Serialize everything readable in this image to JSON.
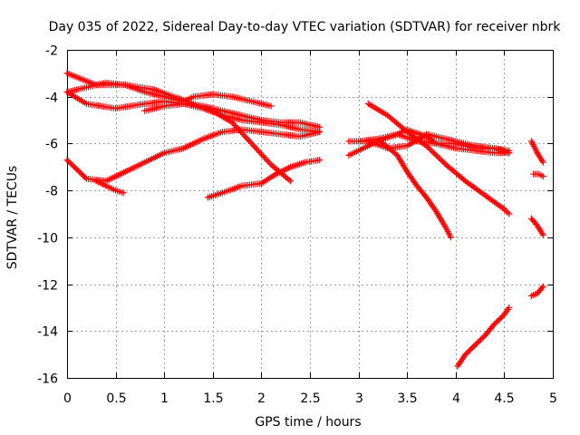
{
  "chart_data": {
    "type": "scatter",
    "title": "Day 035 of 2022, Sidereal Day-to-day VTEC variation (SDTVAR) for receiver nbrk",
    "xlabel": "GPS time / hours",
    "ylabel": "SDTVAR / TECUs",
    "xlim": [
      0,
      5
    ],
    "ylim": [
      -16,
      -2
    ],
    "xticks": [
      0,
      0.5,
      1,
      1.5,
      2,
      2.5,
      3,
      3.5,
      4,
      4.5,
      5
    ],
    "yticks": [
      -16,
      -14,
      -12,
      -10,
      -8,
      -6,
      -4,
      -2
    ],
    "xtick_labels": [
      "0",
      "0.5",
      "1",
      "1.5",
      "2",
      "2.5",
      "3",
      "3.5",
      "4",
      "4.5",
      "5"
    ],
    "ytick_labels": [
      "-16",
      "-14",
      "-12",
      "-10",
      "-8",
      "-6",
      "-4",
      "-2"
    ],
    "grid": true,
    "marker": "+",
    "color": "#ff0000",
    "series": [
      {
        "name": "track-1",
        "x": [
          0.0,
          0.3,
          0.6,
          0.9,
          1.1,
          1.3,
          1.5,
          1.7,
          1.9,
          2.1,
          2.3
        ],
        "y": [
          -3.0,
          -3.5,
          -3.5,
          -3.7,
          -4.0,
          -4.3,
          -4.6,
          -5.1,
          -6.0,
          -6.9,
          -7.6
        ]
      },
      {
        "name": "track-2",
        "x": [
          0.0,
          0.2,
          0.4,
          0.6,
          0.8,
          1.0,
          1.2,
          1.3,
          1.5,
          1.7,
          1.9,
          2.1
        ],
        "y": [
          -3.8,
          -3.6,
          -3.4,
          -3.5,
          -3.8,
          -4.0,
          -4.2,
          -4.0,
          -3.9,
          -4.0,
          -4.2,
          -4.4
        ]
      },
      {
        "name": "track-3",
        "x": [
          0.0,
          0.2,
          0.5,
          0.8,
          1.0,
          1.2,
          1.4,
          1.6,
          1.8,
          2.0,
          2.2,
          2.4,
          2.6
        ],
        "y": [
          -3.8,
          -4.3,
          -4.5,
          -4.3,
          -4.2,
          -4.3,
          -4.5,
          -4.8,
          -5.0,
          -5.1,
          -5.2,
          -5.4,
          -5.5
        ]
      },
      {
        "name": "track-4",
        "x": [
          0.8,
          1.0,
          1.2,
          1.4,
          1.6,
          1.8,
          2.0,
          2.2,
          2.4,
          2.6
        ],
        "y": [
          -4.6,
          -4.4,
          -4.3,
          -4.4,
          -4.6,
          -4.8,
          -5.0,
          -5.1,
          -5.1,
          -5.3
        ]
      },
      {
        "name": "track-5",
        "x": [
          0.0,
          0.2,
          0.4,
          0.6,
          0.8,
          1.0,
          1.2,
          1.4,
          1.6,
          1.8,
          2.0,
          2.2,
          2.4,
          2.6
        ],
        "y": [
          -6.7,
          -7.5,
          -7.6,
          -7.2,
          -6.8,
          -6.4,
          -6.2,
          -5.8,
          -5.5,
          -5.4,
          -5.5,
          -5.6,
          -5.7,
          -5.5
        ]
      },
      {
        "name": "track-6",
        "x": [
          0.3,
          0.4,
          0.5,
          0.58
        ],
        "y": [
          -7.6,
          -7.8,
          -8.0,
          -8.1
        ]
      },
      {
        "name": "track-7",
        "x": [
          1.45,
          1.6,
          1.8,
          2.0,
          2.15,
          2.3,
          2.45,
          2.6
        ],
        "y": [
          -8.3,
          -8.1,
          -7.8,
          -7.7,
          -7.3,
          -7.0,
          -6.8,
          -6.7
        ]
      },
      {
        "name": "track-8",
        "x": [
          2.9,
          3.0,
          3.2,
          3.4,
          3.5,
          3.7,
          3.8,
          4.0,
          4.2,
          4.4,
          4.55
        ],
        "y": [
          -6.5,
          -6.3,
          -5.9,
          -5.6,
          -5.4,
          -5.7,
          -6.0,
          -6.2,
          -6.3,
          -6.4,
          -6.4
        ]
      },
      {
        "name": "track-9",
        "x": [
          2.9,
          3.1,
          3.3,
          3.5,
          3.7,
          3.8,
          4.0,
          4.2,
          4.4,
          4.55
        ],
        "y": [
          -5.9,
          -5.9,
          -6.2,
          -6.1,
          -5.6,
          -5.7,
          -5.9,
          -6.1,
          -6.2,
          -6.3
        ]
      },
      {
        "name": "track-10",
        "x": [
          3.0,
          3.2,
          3.4,
          3.6,
          3.8,
          4.0,
          4.2,
          4.4,
          4.55
        ],
        "y": [
          -5.9,
          -5.8,
          -5.6,
          -5.9,
          -6.0,
          -6.0,
          -6.2,
          -6.2,
          -6.4
        ]
      },
      {
        "name": "track-11",
        "x": [
          3.1,
          3.3,
          3.5,
          3.7,
          3.9,
          4.1,
          4.3,
          4.5,
          4.55
        ],
        "y": [
          -4.3,
          -4.8,
          -5.5,
          -6.1,
          -6.9,
          -7.6,
          -8.2,
          -8.8,
          -9.0
        ]
      },
      {
        "name": "track-12",
        "x": [
          3.2,
          3.4,
          3.5,
          3.6,
          3.7,
          3.8,
          3.9,
          3.95
        ],
        "y": [
          -5.8,
          -6.5,
          -7.2,
          -7.8,
          -8.3,
          -8.9,
          -9.6,
          -10.0
        ]
      },
      {
        "name": "track-13",
        "x": [
          4.02,
          4.1,
          4.2,
          4.3,
          4.4,
          4.5,
          4.55
        ],
        "y": [
          -15.5,
          -15.0,
          -14.6,
          -14.2,
          -13.7,
          -13.3,
          -13.0
        ]
      },
      {
        "name": "track-14",
        "x": [
          4.78,
          4.84,
          4.9
        ],
        "y": [
          -5.9,
          -6.4,
          -6.8
        ]
      },
      {
        "name": "track-15",
        "x": [
          4.8,
          4.86,
          4.9
        ],
        "y": [
          -7.3,
          -7.3,
          -7.4
        ]
      },
      {
        "name": "track-16",
        "x": [
          4.78,
          4.84,
          4.9
        ],
        "y": [
          -9.2,
          -9.5,
          -9.9
        ]
      },
      {
        "name": "track-17",
        "x": [
          4.78,
          4.84,
          4.9
        ],
        "y": [
          -12.5,
          -12.4,
          -12.1
        ]
      }
    ]
  }
}
